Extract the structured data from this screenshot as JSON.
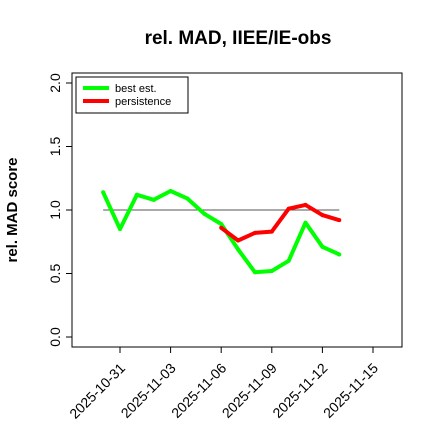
{
  "chart_data": {
    "type": "line",
    "title": "rel. MAD, IIEE/IE-obs",
    "xlabel": "",
    "ylabel": "rel. MAD score",
    "ylim": [
      0,
      2
    ],
    "y_ticks": [
      "0.0",
      "0.5",
      "1.0",
      "1.5",
      "2.0"
    ],
    "x_ticks": [
      "2025-10-31",
      "2025-11-03",
      "2025-11-06",
      "2025-11-09",
      "2025-11-12",
      "2025-11-15"
    ],
    "xlim": [
      "2025-10-28",
      "2025-11-17"
    ],
    "reference_line": 1.0,
    "legend_position": "top-left",
    "series": [
      {
        "name": "best est.",
        "color": "#00ff00",
        "x": [
          "2025-10-30",
          "2025-10-31",
          "2025-11-01",
          "2025-11-02",
          "2025-11-03",
          "2025-11-04",
          "2025-11-05",
          "2025-11-06",
          "2025-11-07",
          "2025-11-08",
          "2025-11-09",
          "2025-11-10",
          "2025-11-11",
          "2025-11-12",
          "2025-11-13"
        ],
        "values": [
          1.14,
          0.85,
          1.12,
          1.08,
          1.15,
          1.09,
          0.97,
          0.89,
          0.69,
          0.51,
          0.52,
          0.6,
          0.9,
          0.71,
          0.65
        ]
      },
      {
        "name": "persistence",
        "color": "#ff0000",
        "x": [
          "2025-11-06",
          "2025-11-07",
          "2025-11-08",
          "2025-11-09",
          "2025-11-10",
          "2025-11-11",
          "2025-11-12",
          "2025-11-13"
        ],
        "values": [
          0.86,
          0.76,
          0.82,
          0.83,
          1.01,
          1.04,
          0.96,
          0.92
        ]
      }
    ]
  }
}
